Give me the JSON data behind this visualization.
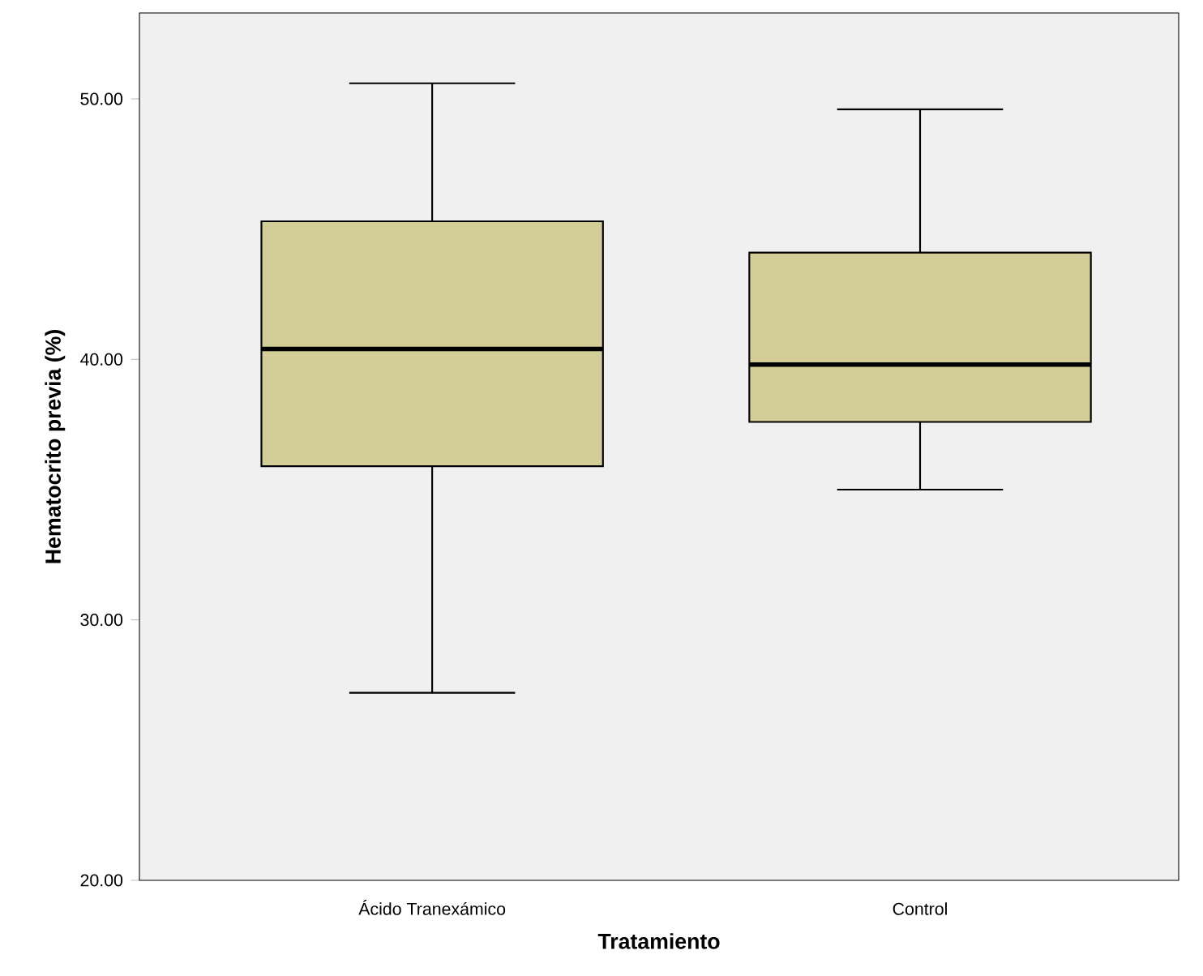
{
  "chart_data": {
    "type": "box",
    "xlabel": "Tratamiento",
    "ylabel": "Hematocrito previa (%)",
    "categories": [
      "Ácido Tranexámico",
      "Control"
    ],
    "color": "#d3ce97",
    "boxes": [
      {
        "low": 27.2,
        "q1": 35.9,
        "median": 40.4,
        "q3": 45.3,
        "high": 50.6
      },
      {
        "low": 35.0,
        "q1": 37.6,
        "median": 39.8,
        "q3": 44.1,
        "high": 49.6
      }
    ],
    "ylim": [
      20,
      53.3
    ],
    "yticks": [
      {
        "value": 20,
        "label": "20.00"
      },
      {
        "value": 30,
        "label": "30.00"
      },
      {
        "value": 40,
        "label": "40.00"
      },
      {
        "value": 50,
        "label": "50.00"
      }
    ]
  }
}
